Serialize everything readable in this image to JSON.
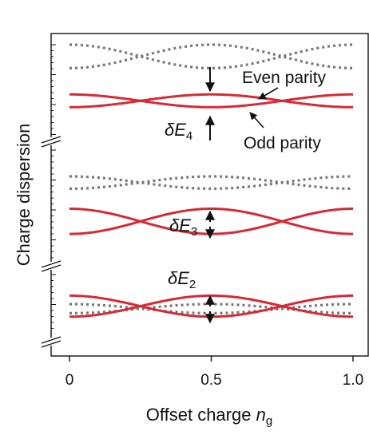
{
  "chart_data": {
    "type": "line",
    "xlabel": "Offset charge",
    "xlabel_sub": "n",
    "xlabel_subscript": "g",
    "ylabel": "Charge dispersion",
    "xlim": [
      0,
      1
    ],
    "xticks": [
      "0",
      "0.5",
      "1.0"
    ],
    "panels": [
      {
        "name": "E4",
        "label_delta": "δE",
        "label_sub": "4",
        "series": [
          {
            "name": "even-1",
            "parity": "even",
            "style": "dotted",
            "color": "#777777",
            "a": 1.0,
            "b": 0.67
          },
          {
            "name": "even-2",
            "parity": "even",
            "style": "dotted",
            "color": "#777777",
            "a": 0.67,
            "b": 1.0
          },
          {
            "name": "odd-1",
            "parity": "odd",
            "style": "solid",
            "color": "#d62a36",
            "a": 0.3,
            "b": 0.12
          },
          {
            "name": "odd-2",
            "parity": "odd",
            "style": "solid",
            "color": "#d62a36",
            "a": 0.12,
            "b": 0.3
          }
        ]
      },
      {
        "name": "E3",
        "label_delta": "δE",
        "label_sub": "3",
        "series": [
          {
            "name": "even-1",
            "parity": "even",
            "style": "dotted",
            "color": "#777777",
            "a": 1.0,
            "b": 0.81
          },
          {
            "name": "even-2",
            "parity": "even",
            "style": "dotted",
            "color": "#777777",
            "a": 0.81,
            "b": 1.0
          },
          {
            "name": "odd-1",
            "parity": "odd",
            "style": "solid",
            "color": "#d62a36",
            "a": 0.5,
            "b": 0.11
          },
          {
            "name": "odd-2",
            "parity": "odd",
            "style": "solid",
            "color": "#d62a36",
            "a": 0.11,
            "b": 0.5
          }
        ]
      },
      {
        "name": "E2",
        "label_delta": "δE",
        "label_sub": "2",
        "series": [
          {
            "name": "even-1",
            "parity": "even",
            "style": "dotted",
            "color": "#777777",
            "a": 0.4,
            "b": 0.66
          },
          {
            "name": "even-2",
            "parity": "even",
            "style": "dotted",
            "color": "#777777",
            "a": 0.66,
            "b": 0.4
          },
          {
            "name": "odd-1",
            "parity": "odd",
            "style": "solid",
            "color": "#d62a36",
            "a": 0.3,
            "b": 0.9
          },
          {
            "name": "odd-2",
            "parity": "odd",
            "style": "solid",
            "color": "#d62a36",
            "a": 0.9,
            "b": 0.3
          }
        ]
      }
    ],
    "annotations": {
      "even": "Even parity",
      "odd": "Odd parity"
    },
    "colors": {
      "odd": "#d62a36",
      "even": "#777777",
      "axis": "#111111"
    }
  }
}
